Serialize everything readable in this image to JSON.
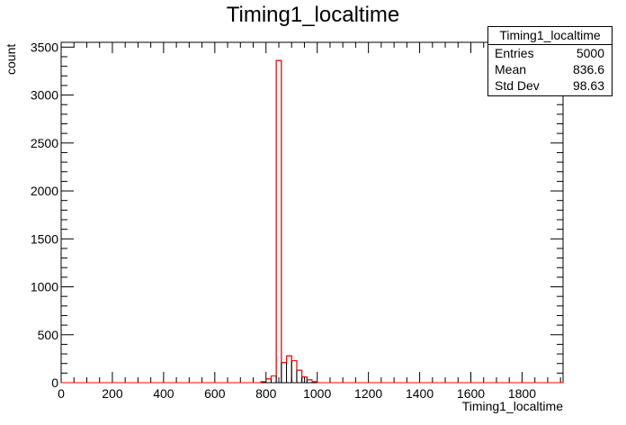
{
  "chart_data": {
    "type": "bar",
    "title": "Timing1_localtime",
    "xlabel": "Timing1_localtime",
    "ylabel": "count",
    "xlim": [
      0,
      1960
    ],
    "ylim": [
      0,
      3550
    ],
    "x_ticks": [
      0,
      200,
      400,
      600,
      800,
      1000,
      1200,
      1400,
      1600,
      1800
    ],
    "y_ticks": [
      0,
      500,
      1000,
      1500,
      2000,
      2500,
      3000,
      3500
    ],
    "bin_width": 20,
    "series": [
      {
        "bins": [
          {
            "x": 780,
            "value": 10
          },
          {
            "x": 800,
            "value": 40
          },
          {
            "x": 820,
            "value": 70
          },
          {
            "x": 840,
            "value": 3360
          },
          {
            "x": 860,
            "value": 210
          },
          {
            "x": 880,
            "value": 280
          },
          {
            "x": 900,
            "value": 230
          },
          {
            "x": 920,
            "value": 130
          },
          {
            "x": 940,
            "value": 60
          },
          {
            "x": 960,
            "value": 30
          },
          {
            "x": 980,
            "value": 10
          }
        ]
      }
    ],
    "colors": {
      "fill_outline": "#000000",
      "line": "#ff0000"
    },
    "stats": {
      "title": "Timing1_localtime",
      "rows": [
        {
          "label": "Entries",
          "value": "5000"
        },
        {
          "label": "Mean",
          "value": "836.6"
        },
        {
          "label": "Std Dev",
          "value": "98.63"
        }
      ]
    }
  }
}
